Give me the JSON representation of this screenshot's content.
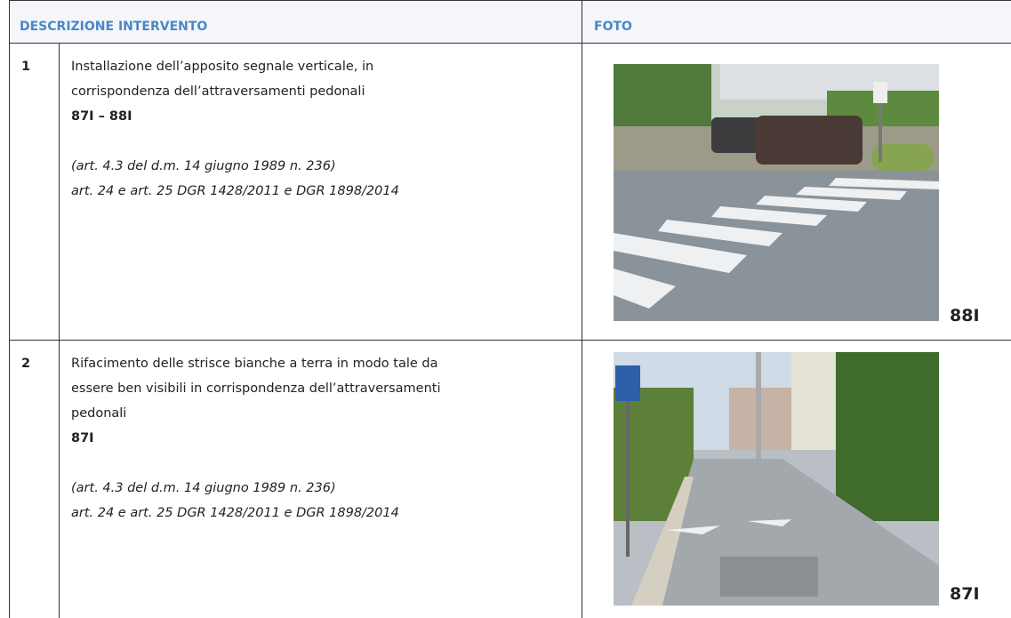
{
  "header": {
    "col1": "DESCRIZIONE INTERVENTO",
    "col2": "FOTO"
  },
  "rows": [
    {
      "number": "1",
      "lines": [
        "Installazione dell’apposito segnale verticale, in",
        "corrispondenza dell’attraversamenti pedonali"
      ],
      "code": "87I – 88I",
      "references": [
        "(art. 4.3 del d.m. 14 giugno 1989 n. 236)",
        "art. 24 e art. 25 DGR 1428/2011 e DGR 1898/2014"
      ],
      "photo_label": "88I"
    },
    {
      "number": "2",
      "lines": [
        "Rifacimento delle strisce bianche a terra in modo tale da",
        "essere ben visibili in corrispondenza dell’attraversamenti",
        "pedonali"
      ],
      "code": "87I",
      "references": [
        "(art. 4.3 del d.m. 14 giugno 1989 n. 236)",
        "art. 24 e art. 25 DGR 1428/2011 e DGR 1898/2014"
      ],
      "photo_label": "87I"
    }
  ]
}
